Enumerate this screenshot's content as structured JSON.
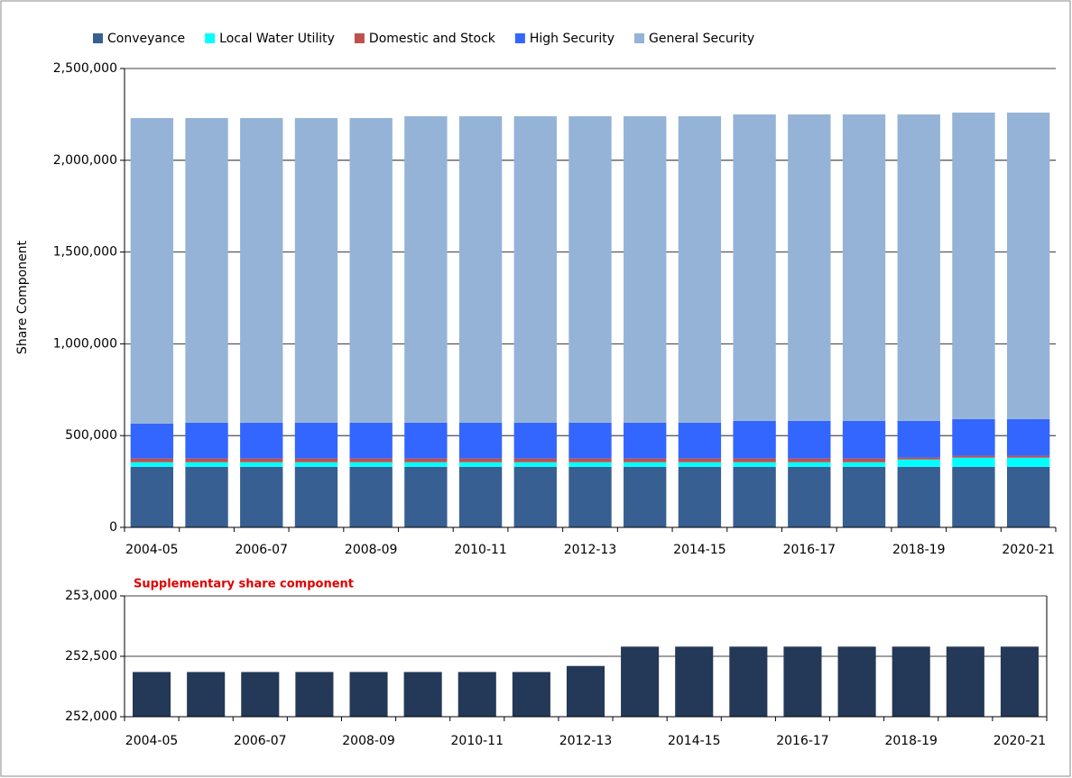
{
  "chart_data": [
    {
      "type": "stacked_bar",
      "ylabel": "Share Component",
      "categories": [
        "2004-05",
        null,
        "2006-07",
        null,
        "2008-09",
        null,
        "2010-11",
        null,
        "2012-13",
        null,
        "2014-15",
        null,
        "2016-17",
        null,
        "2018-19",
        null,
        "2020-21"
      ],
      "series": [
        {
          "name": "Conveyance",
          "color": "#375f91",
          "values": [
            330000,
            330000,
            330000,
            330000,
            330000,
            330000,
            330000,
            330000,
            330000,
            330000,
            330000,
            330000,
            330000,
            330000,
            330000,
            330000,
            330000
          ]
        },
        {
          "name": "Local Water Utility",
          "color": "#00ffff",
          "values": [
            25000,
            25000,
            25000,
            25000,
            25000,
            25000,
            25000,
            25000,
            25000,
            25000,
            25000,
            25000,
            25000,
            25000,
            40000,
            50000,
            50000
          ]
        },
        {
          "name": "Domestic and Stock",
          "color": "#c0504d",
          "values": [
            20000,
            20000,
            20000,
            20000,
            20000,
            20000,
            20000,
            20000,
            20000,
            20000,
            20000,
            20000,
            20000,
            20000,
            10000,
            10000,
            10000
          ]
        },
        {
          "name": "High Security",
          "color": "#3366ff",
          "values": [
            190000,
            195000,
            195000,
            195000,
            195000,
            195000,
            195000,
            195000,
            195000,
            195000,
            195000,
            205000,
            205000,
            205000,
            200000,
            200000,
            200000
          ]
        },
        {
          "name": "General Security",
          "color": "#95b3d7",
          "values": [
            1665000,
            1660000,
            1660000,
            1660000,
            1660000,
            1670000,
            1670000,
            1670000,
            1670000,
            1670000,
            1670000,
            1670000,
            1670000,
            1670000,
            1670000,
            1670000,
            1670000
          ]
        }
      ],
      "ylim": [
        0,
        2500000
      ],
      "yticks": [
        0,
        {
          "value": 500000,
          "label": "500,000"
        },
        {
          "value": 1000000,
          "label": "1,000,000"
        },
        {
          "value": 1500000,
          "label": "1,500,000"
        },
        {
          "value": 2000000,
          "label": "2,000,000"
        },
        {
          "value": 2500000,
          "label": "2,500,000"
        }
      ],
      "grid": true,
      "legend": "top"
    },
    {
      "type": "bar",
      "title": "Supplementary share component",
      "categories": [
        "2004-05",
        null,
        "2006-07",
        null,
        "2008-09",
        null,
        "2010-11",
        null,
        "2012-13",
        null,
        "2014-15",
        null,
        "2016-17",
        null,
        "2018-19",
        null,
        "2020-21"
      ],
      "values": [
        252370,
        252370,
        252370,
        252370,
        252370,
        252370,
        252370,
        252370,
        252420,
        252580,
        252580,
        252580,
        252580,
        252580,
        252580,
        252580,
        252580
      ],
      "color": "#243858",
      "ylim": [
        252000,
        253000
      ],
      "yticks": [
        {
          "value": 252000,
          "label": "252,000"
        },
        {
          "value": 252500,
          "label": "252,500"
        },
        {
          "value": 253000,
          "label": "253,000"
        }
      ],
      "grid": true
    }
  ]
}
